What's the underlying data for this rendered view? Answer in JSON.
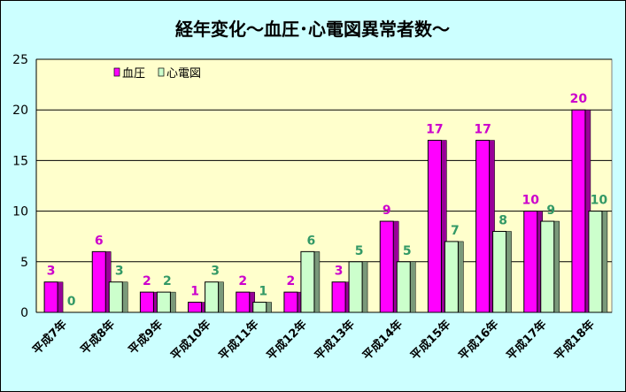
{
  "chart_data": {
    "type": "bar",
    "title": "経年変化～血圧･心電図異常者数～",
    "xlabel": "",
    "ylabel": "",
    "ylim": [
      0,
      25
    ],
    "yticks": [
      "0",
      "5",
      "10",
      "15",
      "20",
      "25"
    ],
    "grid": true,
    "legend_position": "top-left",
    "categories": [
      "平成7年",
      "平成8年",
      "平成9年",
      "平成10年",
      "平成11年",
      "平成12年",
      "平成13年",
      "平成14年",
      "平成15年",
      "平成16年",
      "平成17年",
      "平成18年"
    ],
    "series": [
      {
        "name": "血圧",
        "values": [
          3,
          6,
          2,
          1,
          2,
          2,
          3,
          9,
          17,
          17,
          10,
          20
        ],
        "color": "#FF00FF",
        "label_color": "#CC00CC"
      },
      {
        "name": "心電図",
        "values": [
          0,
          3,
          2,
          3,
          1,
          6,
          5,
          5,
          7,
          8,
          9,
          10
        ],
        "color": "#CCFFCC",
        "label_color": "#339966"
      }
    ]
  },
  "colors": {
    "chart_background": "#CCFFFF",
    "plot_background": "#FFFFCC",
    "gridline": "#000000",
    "bar_outline": "#000000"
  }
}
